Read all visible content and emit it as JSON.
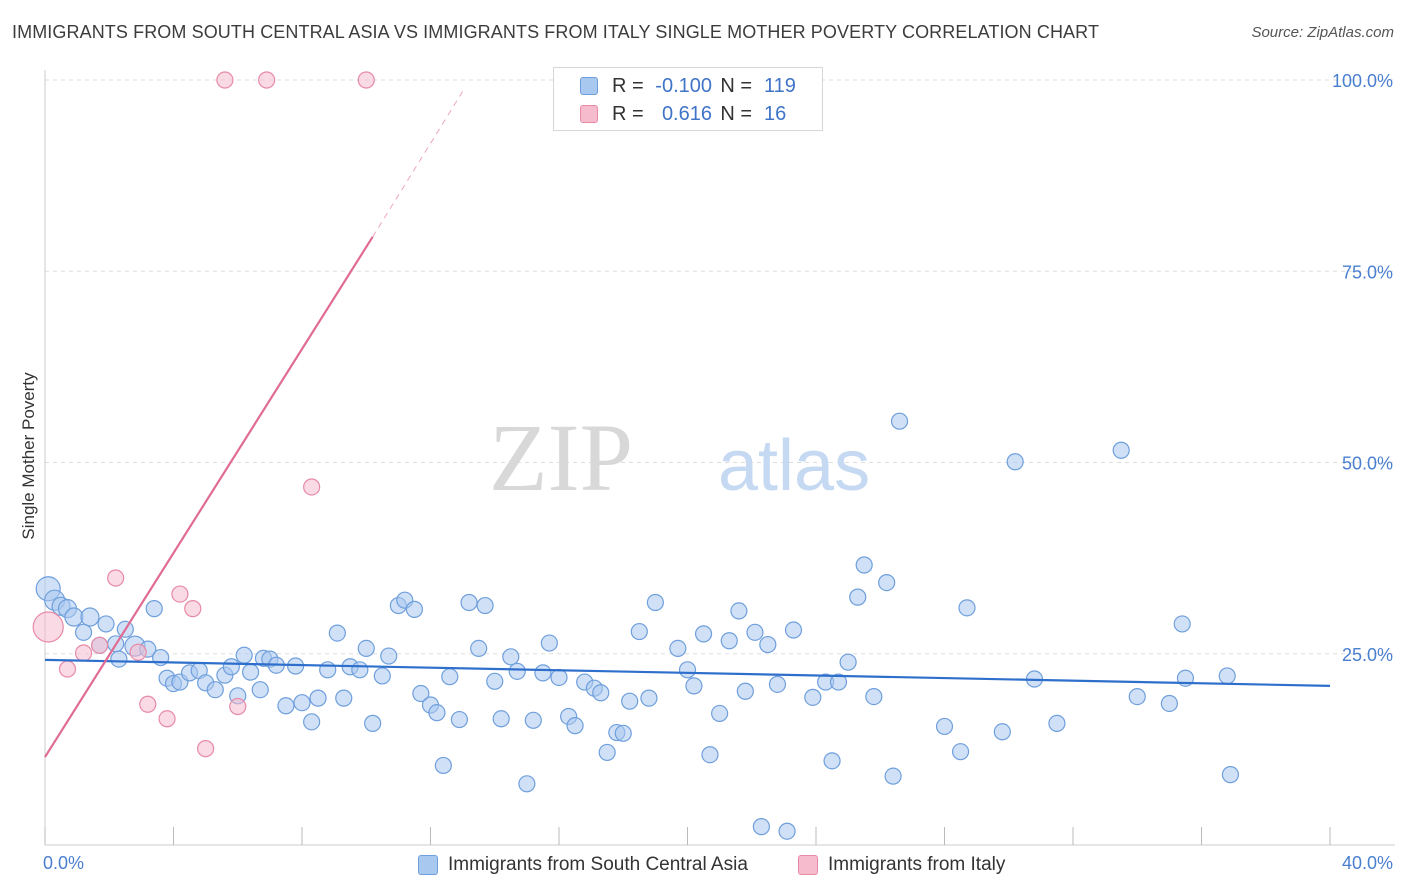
{
  "header": {
    "title": "IMMIGRANTS FROM SOUTH CENTRAL ASIA VS IMMIGRANTS FROM ITALY SINGLE MOTHER POVERTY CORRELATION CHART",
    "source": "Source: ZipAtlas.com"
  },
  "legend_top": {
    "rows": [
      {
        "r_label": "R =",
        "r_value": "-0.100",
        "n_label": "N =",
        "n_value": "119"
      },
      {
        "r_label": "R =",
        "r_value": "0.616",
        "n_label": "N =",
        "n_value": "16"
      }
    ]
  },
  "legend_bottom": {
    "items": [
      "Immigrants from South Central Asia",
      "Immigrants from Italy"
    ]
  },
  "watermark": {
    "part1": "ZIP",
    "part2": "atlas"
  },
  "colors": {
    "blue_fill": "#a9c8f0",
    "blue_stroke": "#6f9fdc",
    "blue_line": "#2f6fcc",
    "pink_fill": "#f6bccd",
    "pink_stroke": "#e88aa6",
    "pink_line": "#e06b94",
    "tick_label": "#4a7fd0",
    "grid": "#dddddd"
  },
  "chart_data": {
    "type": "scatter",
    "title": "IMMIGRANTS FROM SOUTH CENTRAL ASIA VS IMMIGRANTS FROM ITALY SINGLE MOTHER POVERTY CORRELATION CHART",
    "xlabel": "",
    "ylabel": "Single Mother Poverty",
    "xlim": [
      0,
      40
    ],
    "ylim": [
      0,
      100
    ],
    "x_tick_labels": [
      "0.0%",
      "40.0%"
    ],
    "y_ticks": [
      25,
      50,
      75,
      100
    ],
    "y_tick_labels": [
      "25.0%",
      "50.0%",
      "75.0%",
      "100.0%"
    ],
    "series": [
      {
        "name": "Immigrants from South Central Asia",
        "color": "#a9c8f0",
        "r": -0.1,
        "n": 119,
        "trend": {
          "x": [
            0,
            40
          ],
          "y": [
            24.2,
            20.8
          ]
        },
        "points": [
          {
            "x": 0.1,
            "y": 33.5,
            "s": 12
          },
          {
            "x": 0.3,
            "y": 32.0,
            "s": 10
          },
          {
            "x": 0.5,
            "y": 31.2,
            "s": 9
          },
          {
            "x": 0.7,
            "y": 30.9,
            "s": 9
          },
          {
            "x": 0.9,
            "y": 29.8,
            "s": 9
          },
          {
            "x": 1.4,
            "y": 29.8,
            "s": 9
          },
          {
            "x": 1.9,
            "y": 28.9,
            "s": 8
          },
          {
            "x": 2.5,
            "y": 28.2,
            "s": 8
          },
          {
            "x": 1.2,
            "y": 27.8,
            "s": 8
          },
          {
            "x": 1.7,
            "y": 26.1,
            "s": 8
          },
          {
            "x": 2.2,
            "y": 26.3,
            "s": 8
          },
          {
            "x": 2.8,
            "y": 26.0,
            "s": 10
          },
          {
            "x": 3.2,
            "y": 25.6,
            "s": 8
          },
          {
            "x": 3.6,
            "y": 24.5,
            "s": 8
          },
          {
            "x": 2.3,
            "y": 24.3,
            "s": 8
          },
          {
            "x": 3.4,
            "y": 30.9,
            "s": 8
          },
          {
            "x": 3.8,
            "y": 21.8,
            "s": 8
          },
          {
            "x": 4.0,
            "y": 21.1,
            "s": 8
          },
          {
            "x": 4.2,
            "y": 21.3,
            "s": 8
          },
          {
            "x": 4.5,
            "y": 22.5,
            "s": 8
          },
          {
            "x": 4.8,
            "y": 22.8,
            "s": 8
          },
          {
            "x": 5.0,
            "y": 21.2,
            "s": 8
          },
          {
            "x": 5.3,
            "y": 20.3,
            "s": 8
          },
          {
            "x": 5.6,
            "y": 22.2,
            "s": 8
          },
          {
            "x": 5.8,
            "y": 23.3,
            "s": 8
          },
          {
            "x": 6.0,
            "y": 19.5,
            "s": 8
          },
          {
            "x": 6.2,
            "y": 24.8,
            "s": 8
          },
          {
            "x": 6.4,
            "y": 22.6,
            "s": 8
          },
          {
            "x": 6.7,
            "y": 20.3,
            "s": 8
          },
          {
            "x": 6.8,
            "y": 24.4,
            "s": 8
          },
          {
            "x": 7.0,
            "y": 24.3,
            "s": 8
          },
          {
            "x": 7.2,
            "y": 23.5,
            "s": 8
          },
          {
            "x": 7.5,
            "y": 18.2,
            "s": 8
          },
          {
            "x": 7.8,
            "y": 23.4,
            "s": 8
          },
          {
            "x": 8.0,
            "y": 18.6,
            "s": 8
          },
          {
            "x": 8.3,
            "y": 16.1,
            "s": 8
          },
          {
            "x": 8.5,
            "y": 19.2,
            "s": 8
          },
          {
            "x": 8.8,
            "y": 22.9,
            "s": 8
          },
          {
            "x": 9.1,
            "y": 27.7,
            "s": 8
          },
          {
            "x": 9.3,
            "y": 19.2,
            "s": 8
          },
          {
            "x": 9.5,
            "y": 23.3,
            "s": 8
          },
          {
            "x": 9.8,
            "y": 22.9,
            "s": 8
          },
          {
            "x": 10.0,
            "y": 25.7,
            "s": 8
          },
          {
            "x": 10.2,
            "y": 15.9,
            "s": 8
          },
          {
            "x": 10.5,
            "y": 22.1,
            "s": 8
          },
          {
            "x": 10.7,
            "y": 24.7,
            "s": 8
          },
          {
            "x": 11.0,
            "y": 31.3,
            "s": 8
          },
          {
            "x": 11.2,
            "y": 32.0,
            "s": 8
          },
          {
            "x": 11.5,
            "y": 30.8,
            "s": 8
          },
          {
            "x": 11.7,
            "y": 19.8,
            "s": 8
          },
          {
            "x": 12.0,
            "y": 18.3,
            "s": 8
          },
          {
            "x": 12.2,
            "y": 17.3,
            "s": 8
          },
          {
            "x": 12.4,
            "y": 10.4,
            "s": 8
          },
          {
            "x": 12.6,
            "y": 22.0,
            "s": 8
          },
          {
            "x": 12.9,
            "y": 16.4,
            "s": 8
          },
          {
            "x": 13.2,
            "y": 31.7,
            "s": 8
          },
          {
            "x": 13.5,
            "y": 25.7,
            "s": 8
          },
          {
            "x": 13.7,
            "y": 31.3,
            "s": 8
          },
          {
            "x": 14.0,
            "y": 21.4,
            "s": 8
          },
          {
            "x": 14.2,
            "y": 16.5,
            "s": 8
          },
          {
            "x": 14.5,
            "y": 24.6,
            "s": 8
          },
          {
            "x": 14.7,
            "y": 22.7,
            "s": 8
          },
          {
            "x": 15.0,
            "y": 8.0,
            "s": 8
          },
          {
            "x": 15.2,
            "y": 16.3,
            "s": 8
          },
          {
            "x": 15.5,
            "y": 22.5,
            "s": 8
          },
          {
            "x": 15.7,
            "y": 26.4,
            "s": 8
          },
          {
            "x": 16.0,
            "y": 21.9,
            "s": 8
          },
          {
            "x": 16.3,
            "y": 16.8,
            "s": 8
          },
          {
            "x": 16.5,
            "y": 15.6,
            "s": 8
          },
          {
            "x": 16.8,
            "y": 21.3,
            "s": 8
          },
          {
            "x": 17.1,
            "y": 20.5,
            "s": 8
          },
          {
            "x": 17.3,
            "y": 19.9,
            "s": 8
          },
          {
            "x": 17.5,
            "y": 12.1,
            "s": 8
          },
          {
            "x": 17.8,
            "y": 14.7,
            "s": 8
          },
          {
            "x": 18.0,
            "y": 14.6,
            "s": 8
          },
          {
            "x": 18.2,
            "y": 18.8,
            "s": 8
          },
          {
            "x": 18.5,
            "y": 27.9,
            "s": 8
          },
          {
            "x": 18.8,
            "y": 19.2,
            "s": 8
          },
          {
            "x": 19.0,
            "y": 31.7,
            "s": 8
          },
          {
            "x": 19.7,
            "y": 25.7,
            "s": 8
          },
          {
            "x": 20.0,
            "y": 22.9,
            "s": 8
          },
          {
            "x": 20.2,
            "y": 20.8,
            "s": 8
          },
          {
            "x": 20.5,
            "y": 27.6,
            "s": 8
          },
          {
            "x": 20.7,
            "y": 11.8,
            "s": 8
          },
          {
            "x": 21.0,
            "y": 17.2,
            "s": 8
          },
          {
            "x": 21.3,
            "y": 26.7,
            "s": 8
          },
          {
            "x": 21.6,
            "y": 30.6,
            "s": 8
          },
          {
            "x": 21.8,
            "y": 20.1,
            "s": 8
          },
          {
            "x": 22.1,
            "y": 27.8,
            "s": 8
          },
          {
            "x": 22.3,
            "y": 2.4,
            "s": 8
          },
          {
            "x": 22.5,
            "y": 26.2,
            "s": 8
          },
          {
            "x": 22.8,
            "y": 21.0,
            "s": 8
          },
          {
            "x": 23.1,
            "y": 1.8,
            "s": 8
          },
          {
            "x": 23.3,
            "y": 28.1,
            "s": 8
          },
          {
            "x": 23.9,
            "y": 19.3,
            "s": 8
          },
          {
            "x": 24.3,
            "y": 21.3,
            "s": 8
          },
          {
            "x": 24.5,
            "y": 11.0,
            "s": 8
          },
          {
            "x": 24.7,
            "y": 21.3,
            "s": 8
          },
          {
            "x": 25.0,
            "y": 23.9,
            "s": 8
          },
          {
            "x": 25.3,
            "y": 32.4,
            "s": 8
          },
          {
            "x": 25.5,
            "y": 36.6,
            "s": 8
          },
          {
            "x": 25.8,
            "y": 19.4,
            "s": 8
          },
          {
            "x": 26.2,
            "y": 34.3,
            "s": 8
          },
          {
            "x": 26.4,
            "y": 9.0,
            "s": 8
          },
          {
            "x": 26.6,
            "y": 55.4,
            "s": 8
          },
          {
            "x": 28.0,
            "y": 15.5,
            "s": 8
          },
          {
            "x": 28.5,
            "y": 12.2,
            "s": 8
          },
          {
            "x": 29.8,
            "y": 14.8,
            "s": 8
          },
          {
            "x": 30.2,
            "y": 50.1,
            "s": 8
          },
          {
            "x": 30.8,
            "y": 21.7,
            "s": 8
          },
          {
            "x": 31.5,
            "y": 15.9,
            "s": 8
          },
          {
            "x": 33.5,
            "y": 51.6,
            "s": 8
          },
          {
            "x": 34.0,
            "y": 19.4,
            "s": 8
          },
          {
            "x": 35.0,
            "y": 18.5,
            "s": 8
          },
          {
            "x": 35.5,
            "y": 21.8,
            "s": 8
          },
          {
            "x": 36.8,
            "y": 22.1,
            "s": 8
          },
          {
            "x": 36.9,
            "y": 9.2,
            "s": 8
          },
          {
            "x": 35.4,
            "y": 28.9,
            "s": 8
          },
          {
            "x": 28.7,
            "y": 31.0,
            "s": 8
          }
        ]
      },
      {
        "name": "Immigrants from Italy",
        "color": "#f6bccd",
        "r": 0.616,
        "n": 16,
        "trend": {
          "x": [
            0,
            10.2
          ],
          "y": [
            11.5,
            79.5
          ]
        },
        "trend_dashed": {
          "x": [
            10.2,
            13.0
          ],
          "y": [
            79.5,
            98.5
          ]
        },
        "points": [
          {
            "x": 0.1,
            "y": 28.5,
            "s": 15
          },
          {
            "x": 0.7,
            "y": 23.0,
            "s": 8
          },
          {
            "x": 1.2,
            "y": 25.1,
            "s": 8
          },
          {
            "x": 1.7,
            "y": 26.1,
            "s": 8
          },
          {
            "x": 2.2,
            "y": 34.9,
            "s": 8
          },
          {
            "x": 2.9,
            "y": 25.2,
            "s": 8
          },
          {
            "x": 3.2,
            "y": 18.4,
            "s": 8
          },
          {
            "x": 3.8,
            "y": 16.5,
            "s": 8
          },
          {
            "x": 4.2,
            "y": 32.8,
            "s": 8
          },
          {
            "x": 4.6,
            "y": 30.9,
            "s": 8
          },
          {
            "x": 5.0,
            "y": 12.6,
            "s": 8
          },
          {
            "x": 6.0,
            "y": 18.1,
            "s": 8
          },
          {
            "x": 5.6,
            "y": 100.0,
            "s": 8
          },
          {
            "x": 6.9,
            "y": 100.0,
            "s": 8
          },
          {
            "x": 8.3,
            "y": 46.8,
            "s": 8
          },
          {
            "x": 10.0,
            "y": 100.0,
            "s": 8
          }
        ]
      }
    ]
  }
}
